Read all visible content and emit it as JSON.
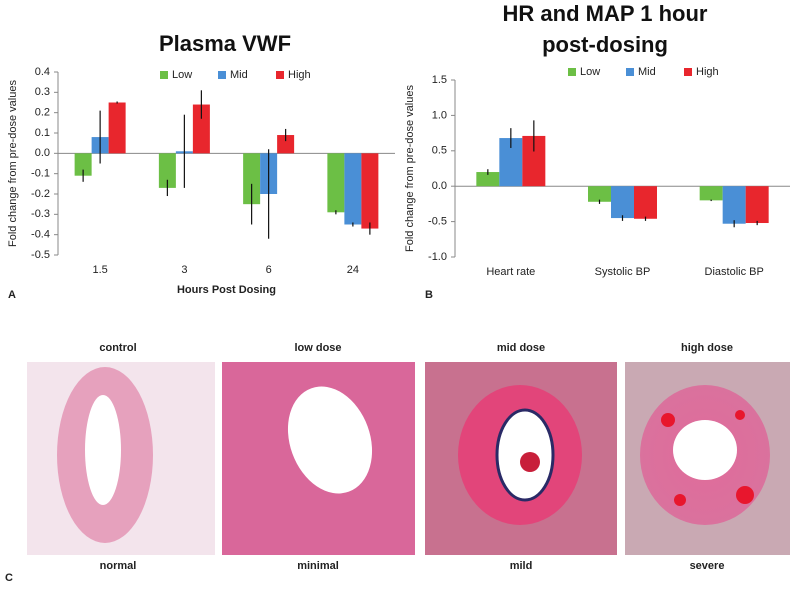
{
  "chart_data": [
    {
      "type": "bar",
      "title": "Plasma VWF",
      "x_label": "Hours Post Dosing",
      "y_label": "Fold change from pre-dose values",
      "categories": [
        "1.5",
        "3",
        "6",
        "24"
      ],
      "series": [
        {
          "name": "Low",
          "color": "#6cbf45",
          "values": [
            -0.11,
            -0.17,
            -0.25,
            -0.29
          ],
          "errors": [
            0.03,
            0.04,
            0.1,
            0.01
          ]
        },
        {
          "name": "Mid",
          "color": "#4a8fd6",
          "values": [
            0.08,
            0.01,
            -0.2,
            -0.35
          ],
          "errors": [
            0.13,
            0.18,
            0.22,
            0.01
          ]
        },
        {
          "name": "High",
          "color": "#e8262d",
          "values": [
            0.25,
            0.24,
            0.09,
            -0.37
          ],
          "errors": [
            0.005,
            0.07,
            0.03,
            0.03
          ]
        }
      ],
      "ylim": [
        -0.5,
        0.4
      ],
      "yticks": [
        0.4,
        0.3,
        0.2,
        0.1,
        {
          "value": 0,
          "label": "0.0"
        },
        -0.1,
        -0.2,
        -0.3,
        -0.4,
        -0.5
      ],
      "grid": false
    },
    {
      "type": "bar",
      "title": "HR and MAP 1 hour post-dosing",
      "y_label": "Fold change from pre-dose values",
      "categories": [
        "Heart rate",
        "Systolic BP",
        "Diastolic BP"
      ],
      "series": [
        {
          "name": "Low",
          "color": "#6cbf45",
          "values": [
            0.2,
            -0.22,
            -0.2
          ],
          "errors": [
            0.04,
            0.03,
            0.01
          ]
        },
        {
          "name": "Mid",
          "color": "#4a8fd6",
          "values": [
            0.68,
            -0.45,
            -0.53
          ],
          "errors": [
            0.14,
            0.04,
            0.05
          ]
        },
        {
          "name": "High",
          "color": "#e8262d",
          "values": [
            0.71,
            -0.46,
            -0.52
          ],
          "errors": [
            0.22,
            0.03,
            0.03
          ]
        }
      ],
      "ylim": [
        -1,
        1.5
      ],
      "yticks": [
        1.5,
        {
          "value": 1,
          "label": "1.0"
        },
        0.5,
        {
          "value": 0,
          "label": "0.0"
        },
        -0.5,
        {
          "value": -1,
          "label": "-1.0"
        }
      ],
      "grid": false
    }
  ],
  "panel_labels": [
    "A",
    "B",
    "C"
  ],
  "histology": [
    {
      "top": "control",
      "bottom": "normal",
      "color": "#111111"
    },
    {
      "top": "low dose",
      "bottom": "minimal",
      "color": "#6cbf45"
    },
    {
      "top": "mid dose",
      "bottom": "mild",
      "color": "#3a4fa0"
    },
    {
      "top": "high dose",
      "bottom": "severe",
      "color": "#e8262d"
    }
  ]
}
